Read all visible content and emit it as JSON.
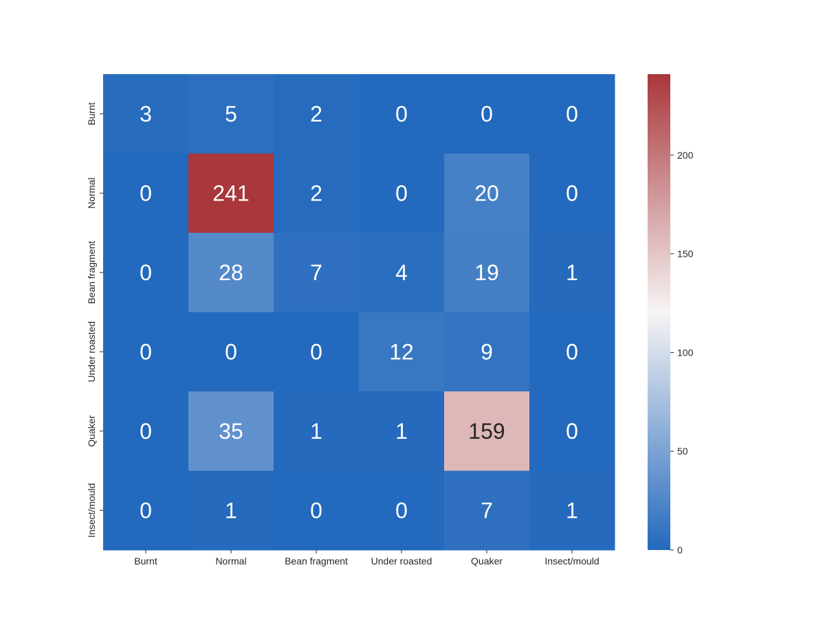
{
  "chart_data": {
    "type": "heatmap",
    "title": "",
    "xlabel": "",
    "ylabel": "",
    "x_categories": [
      "Burnt",
      "Normal",
      "Bean fragment",
      "Under roasted",
      "Quaker",
      "Insect/mould"
    ],
    "y_categories": [
      "Burnt",
      "Normal",
      "Bean fragment",
      "Under roasted",
      "Quaker",
      "Insect/mould"
    ],
    "values": [
      [
        3,
        5,
        2,
        0,
        0,
        0
      ],
      [
        0,
        241,
        2,
        0,
        20,
        0
      ],
      [
        0,
        28,
        7,
        4,
        19,
        1
      ],
      [
        0,
        0,
        0,
        12,
        9,
        0
      ],
      [
        0,
        35,
        1,
        1,
        159,
        0
      ],
      [
        0,
        1,
        0,
        0,
        7,
        1
      ]
    ],
    "colorbar": {
      "min": 0,
      "max": 241,
      "ticks": [
        0,
        50,
        100,
        150,
        200
      ],
      "colormap": [
        "#2369bd",
        "#f7f4f4",
        "#a9373b"
      ]
    },
    "annotated": true
  }
}
